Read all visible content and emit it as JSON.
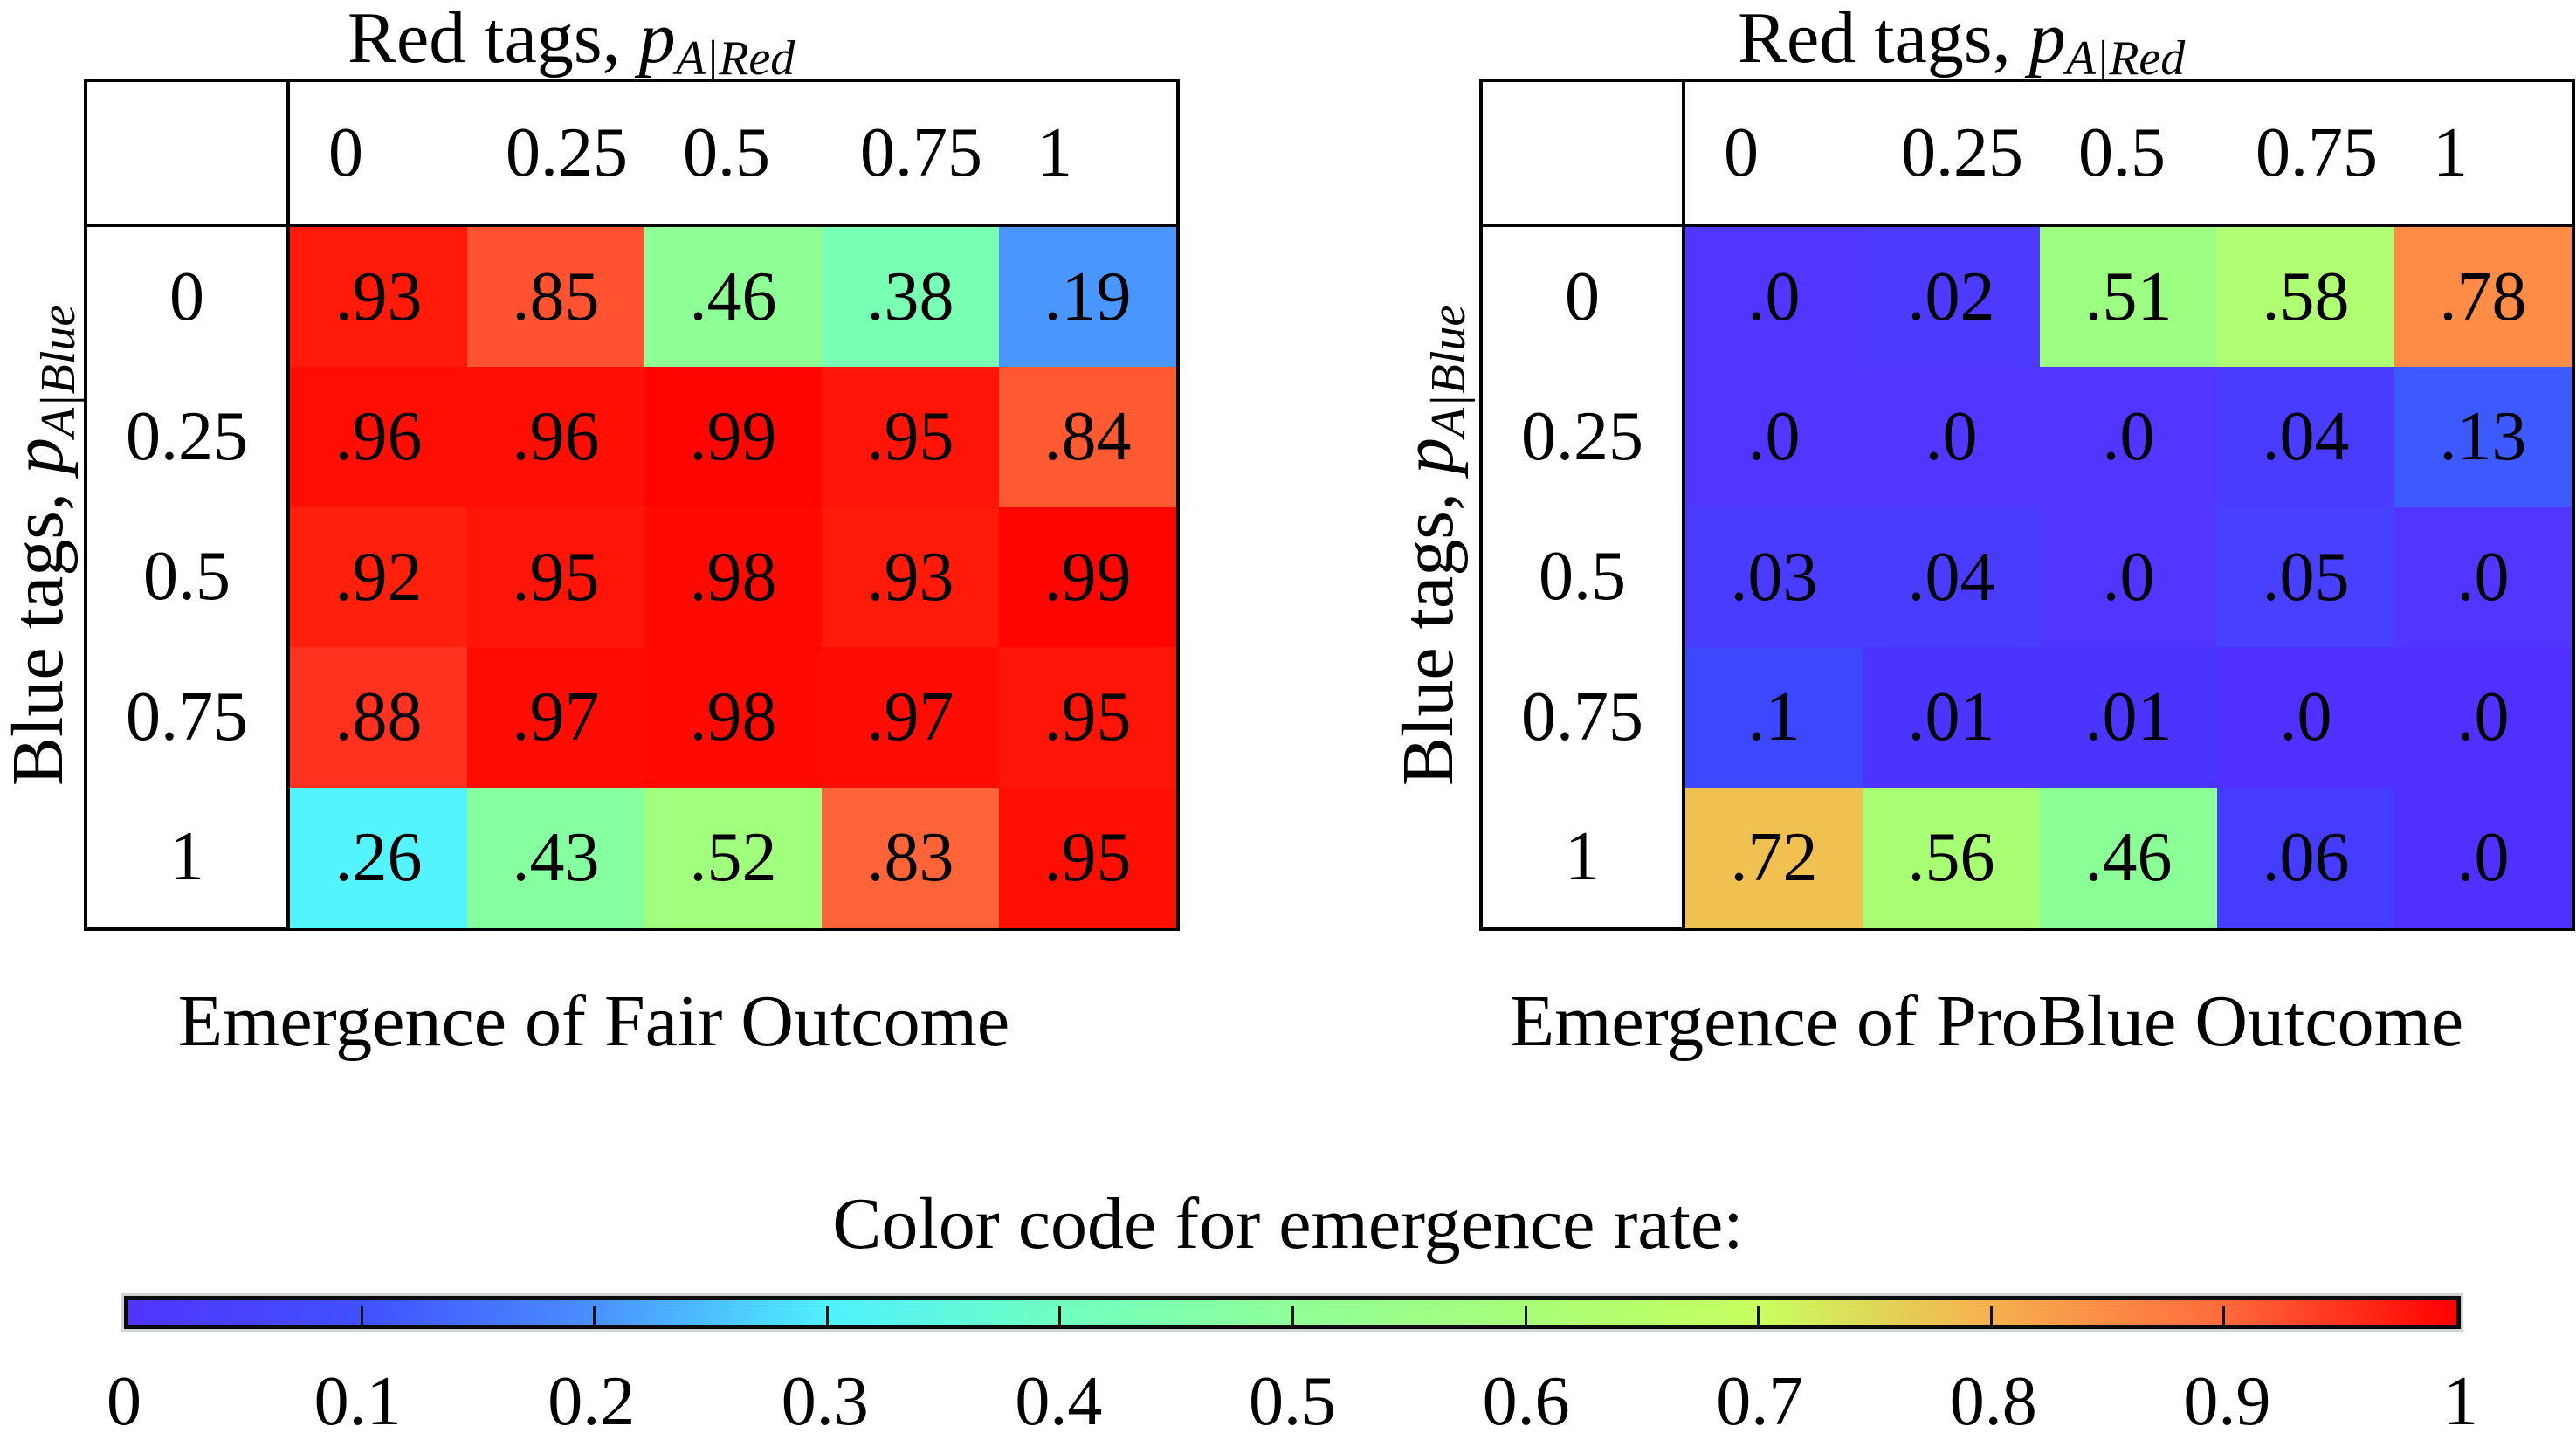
{
  "chart_data": [
    {
      "type": "heatmap",
      "title": "Emergence of Fair Outcome",
      "xlabel": "Red tags, p_{A|Red}",
      "ylabel": "Blue tags, p_{A|Blue}",
      "x_categories": [
        "0",
        "0.25",
        "0.5",
        "0.75",
        "1"
      ],
      "y_categories": [
        "0",
        "0.25",
        "0.5",
        "0.75",
        "1"
      ],
      "values": [
        [
          ".93",
          ".85",
          ".46",
          ".38",
          ".19"
        ],
        [
          ".96",
          ".96",
          ".99",
          ".95",
          ".84"
        ],
        [
          ".92",
          ".95",
          ".98",
          ".93",
          ".99"
        ],
        [
          ".88",
          ".97",
          ".98",
          ".97",
          ".95"
        ],
        [
          ".26",
          ".43",
          ".52",
          ".83",
          ".95"
        ]
      ],
      "colors": [
        [
          "#ff1a0a",
          "#ff5230",
          "#8eff94",
          "#78ffb4",
          "#4a96ff"
        ],
        [
          "#ff0e04",
          "#ff0e04",
          "#ff0400",
          "#ff1408",
          "#ff5a32"
        ],
        [
          "#ff200c",
          "#ff1408",
          "#ff0a02",
          "#ff1a0a",
          "#ff0400"
        ],
        [
          "#ff3220",
          "#ff0c04",
          "#ff0a02",
          "#ff0c04",
          "#ff1408"
        ],
        [
          "#54f4ff",
          "#86ffa0",
          "#a0ff7c",
          "#ff6438",
          "#ff0e04"
        ]
      ]
    },
    {
      "type": "heatmap",
      "title": "Emergence of ProBlue Outcome",
      "xlabel": "Red tags, p_{A|Red}",
      "ylabel": "Blue tags, p_{A|Blue}",
      "x_categories": [
        "0",
        "0.25",
        "0.5",
        "0.75",
        "1"
      ],
      "y_categories": [
        "0",
        "0.25",
        "0.5",
        "0.75",
        "1"
      ],
      "values": [
        [
          ".0",
          ".02",
          ".51",
          ".58",
          ".78"
        ],
        [
          ".0",
          ".0",
          ".0",
          ".04",
          ".13"
        ],
        [
          ".03",
          ".04",
          ".0",
          ".05",
          ".0"
        ],
        [
          ".1",
          ".01",
          ".01",
          ".0",
          ".0"
        ],
        [
          ".72",
          ".56",
          ".46",
          ".06",
          ".0"
        ]
      ],
      "colors": [
        [
          "#5036ff",
          "#4e3aff",
          "#9cff82",
          "#b0ff72",
          "#ff8c46"
        ],
        [
          "#5036ff",
          "#5036ff",
          "#5036ff",
          "#4a3cff",
          "#3c5aff"
        ],
        [
          "#4a3cff",
          "#4a3cff",
          "#5036ff",
          "#4840ff",
          "#5036ff"
        ],
        [
          "#3c48ff",
          "#4c34ff",
          "#4c34ff",
          "#5030ff",
          "#5030ff"
        ],
        [
          "#f0c050",
          "#a8ff74",
          "#8aff96",
          "#443cff",
          "#5030ff"
        ]
      ]
    },
    {
      "type": "colorbar",
      "title": "Color code for emergence rate:",
      "range": [
        0,
        1
      ],
      "ticks": [
        "0",
        "0.1",
        "0.2",
        "0.3",
        "0.4",
        "0.5",
        "0.6",
        "0.7",
        "0.8",
        "0.9",
        "1"
      ],
      "gradient": [
        "#5035ff",
        "#4050ff",
        "#4a90ff",
        "#50f0ff",
        "#70ffc0",
        "#90ff98",
        "#a8ff78",
        "#c8ff60",
        "#f6b050",
        "#ff6a3c",
        "#ff0000"
      ]
    }
  ],
  "panels": [
    {
      "col_title": "Red tags, ",
      "col_var": "p",
      "col_sub": "A|Red",
      "row_title": "Blue tags, ",
      "row_var": "p",
      "row_sub": "A|Blue",
      "caption": "Emergence of Fair Outcome"
    },
    {
      "col_title": "Red tags, ",
      "col_var": "p",
      "col_sub": "A|Red",
      "row_title": "Blue tags, ",
      "row_var": "p",
      "row_sub": "A|Blue",
      "caption": "Emergence of ProBlue Outcome"
    }
  ],
  "colorbar": {
    "title": "Color code for emergence rate:",
    "ticks": [
      "0",
      "0.1",
      "0.2",
      "0.3",
      "0.4",
      "0.5",
      "0.6",
      "0.7",
      "0.8",
      "0.9",
      "1"
    ]
  }
}
